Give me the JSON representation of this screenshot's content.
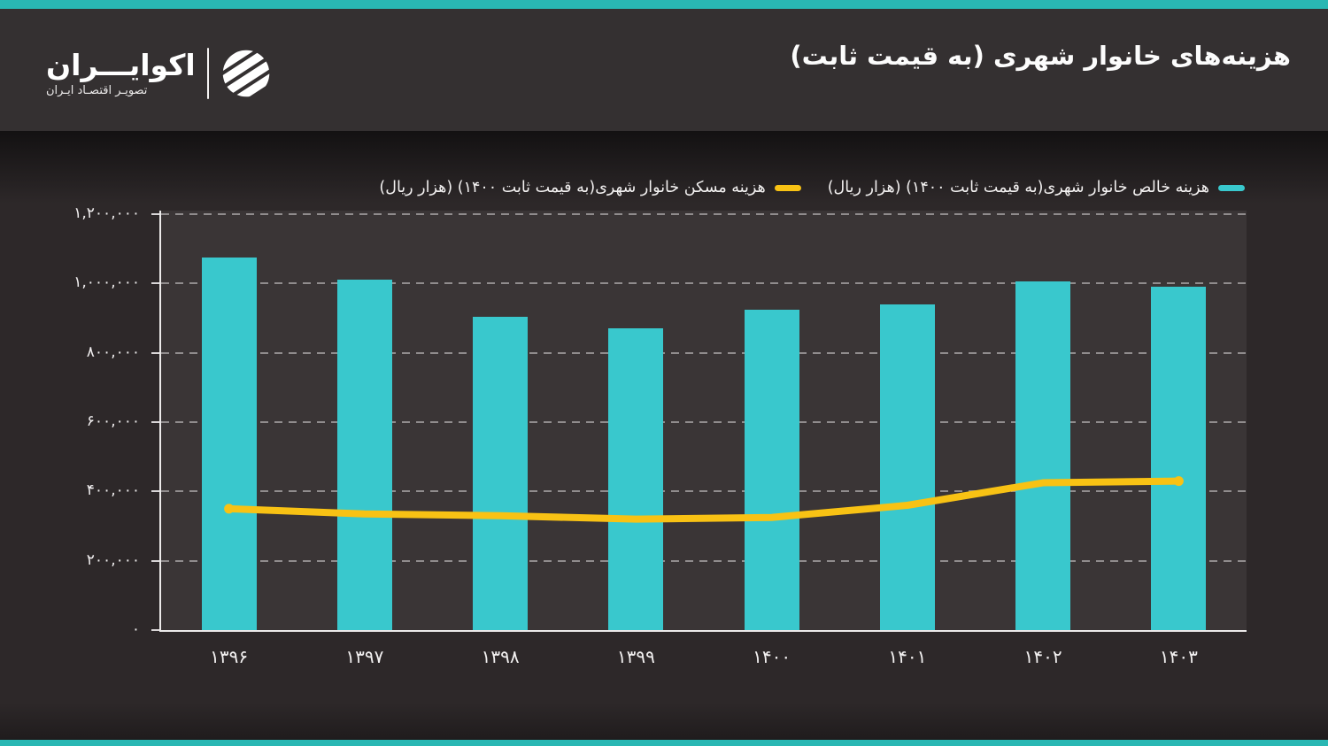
{
  "accent_color": "#29b7b3",
  "header": {
    "title": "هزینه‌های خانوار شهری (به قیمت ثابت)",
    "logo": {
      "name": "اکوایـــران",
      "tagline": "تصویـر اقتصـاد ایـران"
    }
  },
  "legend": [
    {
      "label": "هزینه خالص خانوار شهری(به قیمت ثابت ۱۴۰۰) (هزار ریال)",
      "color": "#39c8cd"
    },
    {
      "label": "هزینه مسکن خانوار شهری(به قیمت ثابت ۱۴۰۰) (هزار ریال)",
      "color": "#f8c214"
    }
  ],
  "chart_data": {
    "type": "bar",
    "title": "هزینه‌های خانوار شهری (به قیمت ثابت)",
    "categories": [
      "۱۳۹۶",
      "۱۳۹۷",
      "۱۳۹۸",
      "۱۳۹۹",
      "۱۴۰۰",
      "۱۴۰۱",
      "۱۴۰۲",
      "۱۴۰۳"
    ],
    "categories_latin": [
      1396,
      1397,
      1398,
      1399,
      1400,
      1401,
      1402,
      1403
    ],
    "series": [
      {
        "name": "هزینه خالص خانوار شهری(به قیمت ثابت ۱۴۰۰) (هزار ریال)",
        "type": "bar",
        "color": "#39c8cd",
        "values": [
          1075000,
          1010000,
          905000,
          870000,
          925000,
          940000,
          1005000,
          990000
        ]
      },
      {
        "name": "هزینه مسکن خانوار شهری(به قیمت ثابت ۱۴۰۰) (هزار ریال)",
        "type": "line",
        "color": "#f8c214",
        "values": [
          350000,
          335000,
          330000,
          320000,
          325000,
          360000,
          425000,
          430000
        ]
      }
    ],
    "xlabel": "",
    "ylabel": "هزار ریال",
    "ylim": [
      0,
      1200000
    ],
    "ytick_step": 200000,
    "ytick_labels": [
      "۰",
      "۲۰۰,۰۰۰",
      "۴۰۰,۰۰۰",
      "۶۰۰,۰۰۰",
      "۸۰۰,۰۰۰",
      "۱,۰۰۰,۰۰۰",
      "۱,۲۰۰,۰۰۰"
    ],
    "grid": "dashed-horizontal",
    "legend_position": "top"
  }
}
